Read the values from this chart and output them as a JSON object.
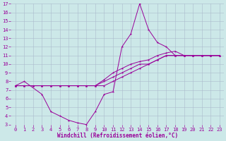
{
  "xlabel": "Windchill (Refroidissement éolien,°C)",
  "background_color": "#cce8e8",
  "grid_color": "#aabbcc",
  "line_color": "#990099",
  "xlim": [
    -0.5,
    23.5
  ],
  "ylim": [
    3,
    17
  ],
  "xticks": [
    0,
    1,
    2,
    3,
    4,
    5,
    6,
    7,
    8,
    9,
    10,
    11,
    12,
    13,
    14,
    15,
    16,
    17,
    18,
    19,
    20,
    21,
    22,
    23
  ],
  "yticks": [
    3,
    4,
    5,
    6,
    7,
    8,
    9,
    10,
    11,
    12,
    13,
    14,
    15,
    16,
    17
  ],
  "series": [
    {
      "x": [
        0,
        1,
        3,
        4,
        5,
        6,
        7,
        8,
        9,
        10,
        11,
        12,
        13,
        14,
        15,
        16,
        17,
        18,
        19,
        20,
        21,
        22,
        23
      ],
      "y": [
        7.5,
        8,
        6.5,
        4.5,
        4,
        3.5,
        3.2,
        3.0,
        4.5,
        6.5,
        6.8,
        12,
        13.5,
        17,
        14,
        12.5,
        12,
        11,
        11,
        11,
        11,
        11,
        11
      ]
    },
    {
      "x": [
        0,
        1,
        2,
        3,
        4,
        5,
        6,
        7,
        8,
        9,
        10,
        11,
        12,
        13,
        14,
        15,
        16,
        17,
        18,
        19,
        20,
        21,
        22,
        23
      ],
      "y": [
        7.5,
        7.5,
        7.5,
        7.5,
        7.5,
        7.5,
        7.5,
        7.5,
        7.5,
        7.5,
        8.2,
        9.0,
        9.5,
        10.0,
        10.3,
        10.5,
        11.0,
        11.3,
        11.5,
        11.0,
        11.0,
        11.0,
        11.0,
        11.0
      ]
    },
    {
      "x": [
        0,
        1,
        2,
        3,
        4,
        5,
        6,
        7,
        8,
        9,
        10,
        11,
        12,
        13,
        14,
        15,
        16,
        17,
        18,
        19,
        20,
        21,
        22,
        23
      ],
      "y": [
        7.5,
        7.5,
        7.5,
        7.5,
        7.5,
        7.5,
        7.5,
        7.5,
        7.5,
        7.5,
        8.0,
        8.5,
        9.0,
        9.5,
        10.0,
        10.0,
        10.5,
        11.0,
        11.0,
        11.0,
        11.0,
        11.0,
        11.0,
        11.0
      ]
    },
    {
      "x": [
        0,
        1,
        2,
        3,
        4,
        5,
        6,
        7,
        8,
        9,
        10,
        11,
        12,
        13,
        14,
        15,
        16,
        17,
        18,
        19,
        20,
        21,
        22,
        23
      ],
      "y": [
        7.5,
        7.5,
        7.5,
        7.5,
        7.5,
        7.5,
        7.5,
        7.5,
        7.5,
        7.5,
        7.5,
        8.0,
        8.5,
        9.0,
        9.5,
        10.0,
        10.5,
        11.0,
        11.0,
        11.0,
        11.0,
        11.0,
        11.0,
        11.0
      ]
    }
  ]
}
